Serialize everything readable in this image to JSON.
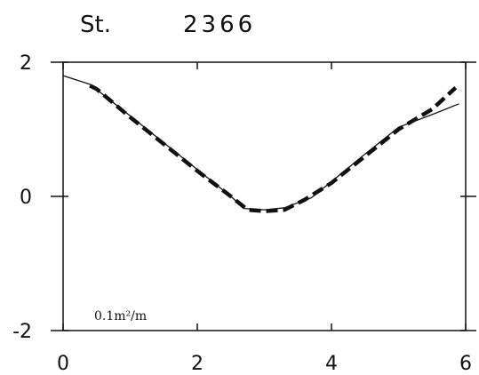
{
  "chart_data": {
    "type": "line",
    "title_prefix": "St.",
    "title_number": "2366",
    "unit_label": "0.1m²/m",
    "xlim": [
      0,
      6
    ],
    "ylim": [
      -2,
      2
    ],
    "x_ticks": [
      "0",
      "2",
      "4",
      "6"
    ],
    "y_ticks": [
      "2",
      "0",
      "-2"
    ],
    "grid": false,
    "series": [
      {
        "style": "solid-thin",
        "x": [
          0.0,
          0.4,
          1.0,
          1.5,
          2.0,
          2.5,
          2.7,
          3.0,
          3.3,
          3.7,
          4.0,
          4.5,
          5.0,
          5.5,
          5.9
        ],
        "y": [
          1.8,
          1.67,
          1.2,
          0.8,
          0.4,
          0.0,
          -0.18,
          -0.2,
          -0.17,
          -0.02,
          0.22,
          0.63,
          1.03,
          1.22,
          1.38
        ]
      },
      {
        "style": "dashed-thick",
        "x": [
          0.4,
          0.5,
          1.0,
          1.5,
          2.0,
          2.5,
          2.75,
          3.0,
          3.3,
          3.6,
          4.0,
          4.5,
          5.0,
          5.5,
          5.85
        ],
        "y": [
          1.65,
          1.6,
          1.18,
          0.78,
          0.38,
          0.0,
          -0.2,
          -0.22,
          -0.2,
          -0.05,
          0.2,
          0.6,
          1.0,
          1.3,
          1.62
        ]
      }
    ]
  }
}
